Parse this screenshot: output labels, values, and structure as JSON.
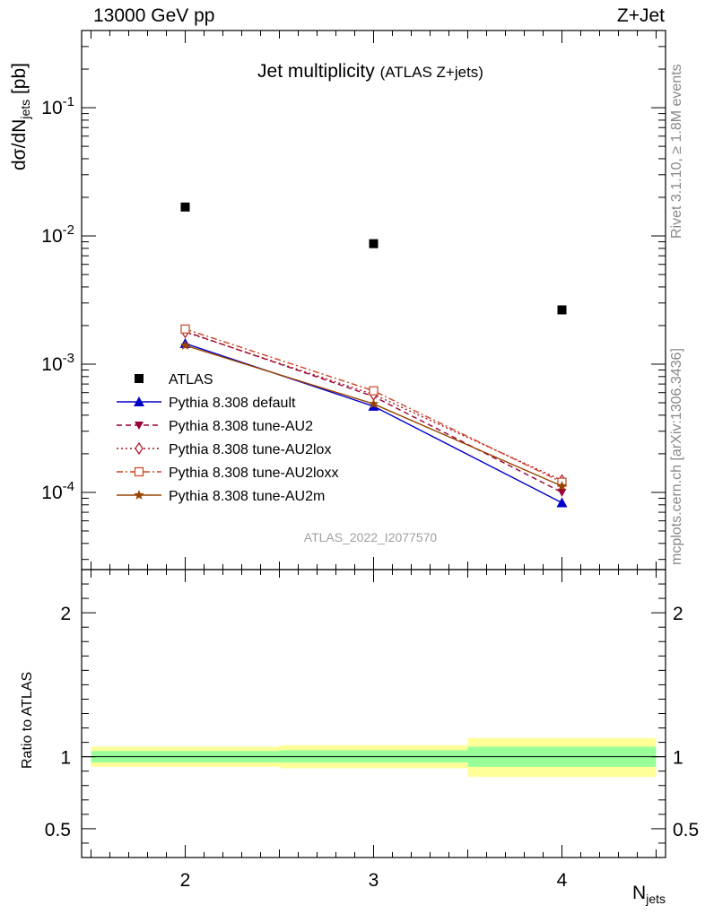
{
  "header": {
    "left": "13000 GeV pp",
    "right": "Z+Jet"
  },
  "title": {
    "main": "Jet multiplicity",
    "sub": "(ATLAS Z+jets)"
  },
  "side_labels": {
    "rivet": "Rivet 3.1.10, ≥ 1.8M events",
    "mcplots": "mcplots.cern.ch [arXiv:1306.3436]"
  },
  "watermark": "ATLAS_2022_I2077570",
  "axes": {
    "y_main_label": "dσ/dN",
    "y_main_label_sub": "jets",
    "y_main_label_unit": " [pb]",
    "y_ratio_label": "Ratio to ATLAS",
    "x_label": "N",
    "x_label_sub": "jets"
  },
  "chart_data": [
    {
      "type": "scatter",
      "title": "Jet multiplicity",
      "subtitle": "(ATLAS Z+jets)",
      "xlabel": "N_jets",
      "ylabel": "dσ/dN_jets [pb]",
      "y_scale": "log",
      "xlim": [
        1.45,
        4.55
      ],
      "ylim": [
        2.5e-05,
        0.4
      ],
      "x_ticks": [
        2,
        3,
        4
      ],
      "y_tick_labels": [
        "10^{-4}",
        "10^{-3}",
        "10^{-2}",
        "10^{-1}"
      ],
      "x": [
        2,
        3,
        4
      ],
      "grid": false,
      "legend_position": "bottom-left",
      "series": [
        {
          "name": "ATLAS",
          "marker": "square",
          "color": "#000000",
          "dash": "none",
          "values": [
            0.0168,
            0.0087,
            0.00265
          ]
        },
        {
          "name": "Pythia 8.308 default",
          "marker": "triangle-up",
          "color": "#0000cc",
          "dash": "solid",
          "values": [
            0.00145,
            0.00047,
            8.3e-05
          ]
        },
        {
          "name": "Pythia 8.308 tune-AU2",
          "marker": "triangle-down",
          "color": "#990033",
          "dash": "dashed",
          "values": [
            0.0018,
            0.00056,
            0.0001
          ]
        },
        {
          "name": "Pythia 8.308 tune-AU2lox",
          "marker": "diamond-open",
          "color": "#aa1122",
          "dash": "dotted",
          "values": [
            0.00178,
            0.00058,
            0.000124
          ]
        },
        {
          "name": "Pythia 8.308 tune-AU2loxx",
          "marker": "square-open",
          "color": "#cc4422",
          "dash": "dashdot",
          "values": [
            0.00188,
            0.00062,
            0.00012
          ]
        },
        {
          "name": "Pythia 8.308 tune-AU2m",
          "marker": "star",
          "color": "#994400",
          "dash": "solid",
          "values": [
            0.0014,
            0.00049,
            0.000112
          ]
        }
      ]
    },
    {
      "type": "area",
      "ylabel": "Ratio to ATLAS",
      "ylim": [
        0.3,
        2.3
      ],
      "y_ticks": [
        0.5,
        1,
        2
      ],
      "y_tick_labels": [
        "0.5",
        "1",
        "2"
      ],
      "reference_line": 1,
      "bins": [
        {
          "x_low": 1.5,
          "x_high": 2.5,
          "stat_low": 0.96,
          "stat_high": 1.04,
          "total_low": 0.93,
          "total_high": 1.07
        },
        {
          "x_low": 2.5,
          "x_high": 3.5,
          "stat_low": 0.96,
          "stat_high": 1.045,
          "total_low": 0.92,
          "total_high": 1.08
        },
        {
          "x_low": 3.5,
          "x_high": 4.5,
          "stat_low": 0.93,
          "stat_high": 1.07,
          "total_low": 0.86,
          "total_high": 1.13
        }
      ],
      "colors": {
        "stat": "#99ff99",
        "total": "#ffff99"
      }
    }
  ]
}
